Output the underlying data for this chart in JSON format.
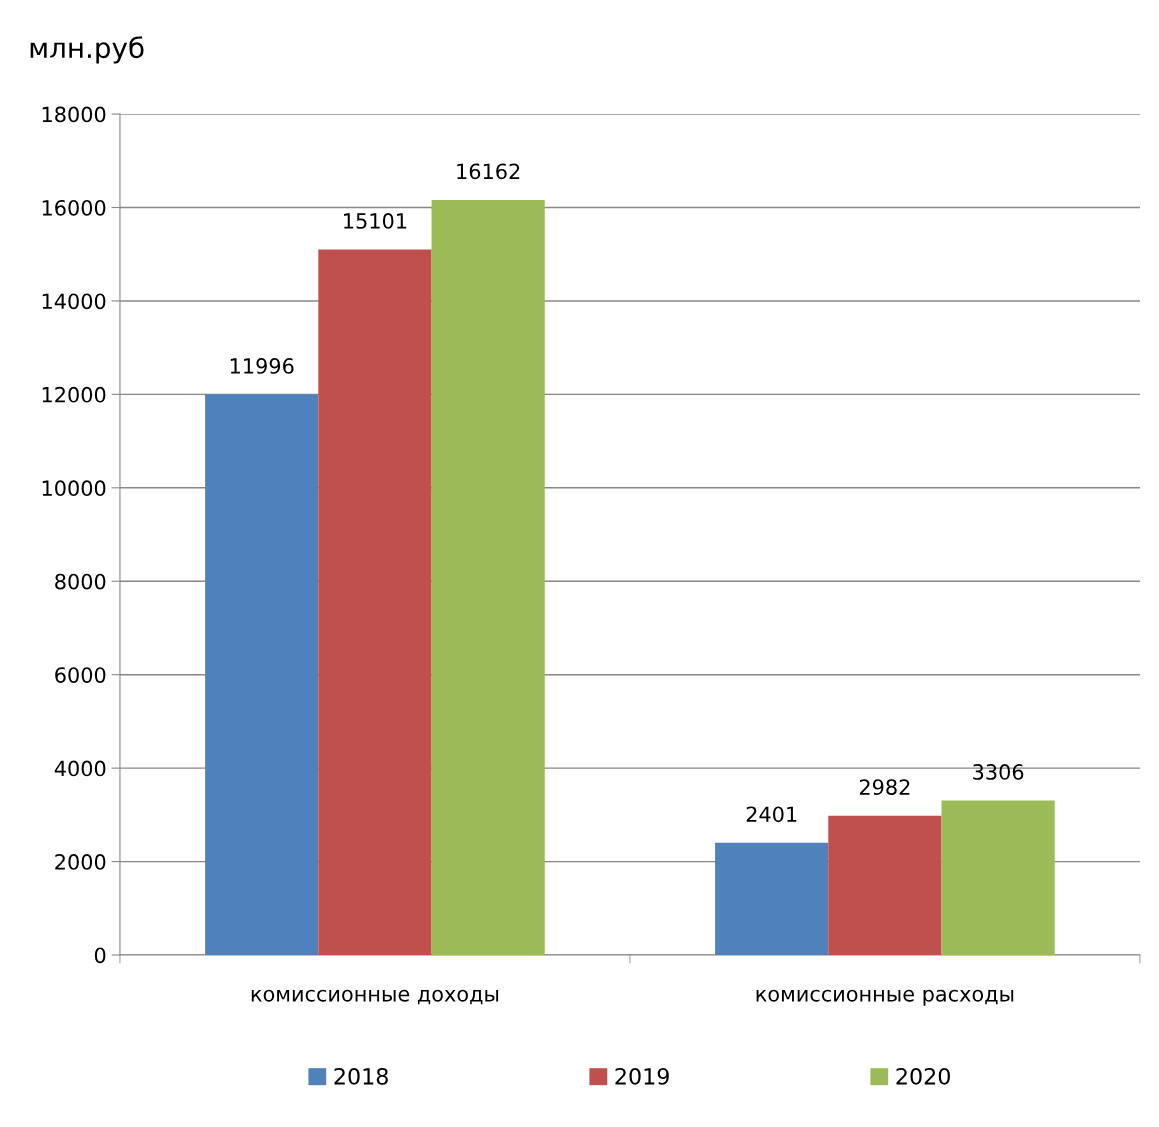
{
  "chart_data": {
    "type": "bar",
    "ylabel": "млн.руб",
    "categories": [
      "комиссионные доходы",
      "комиссионные расходы"
    ],
    "series": [
      {
        "name": "2018",
        "color": "#4f81bd",
        "values": [
          11996,
          2401
        ]
      },
      {
        "name": "2019",
        "color": "#c0504d",
        "values": [
          15101,
          2982
        ]
      },
      {
        "name": "2020",
        "color": "#9bbb59",
        "values": [
          16162,
          3306
        ]
      }
    ],
    "ylim": [
      0,
      18000
    ],
    "yticks": [
      0,
      2000,
      4000,
      6000,
      8000,
      10000,
      12000,
      14000,
      16000,
      18000
    ],
    "grid": "y",
    "legend": "bottom",
    "data_labels": true
  }
}
